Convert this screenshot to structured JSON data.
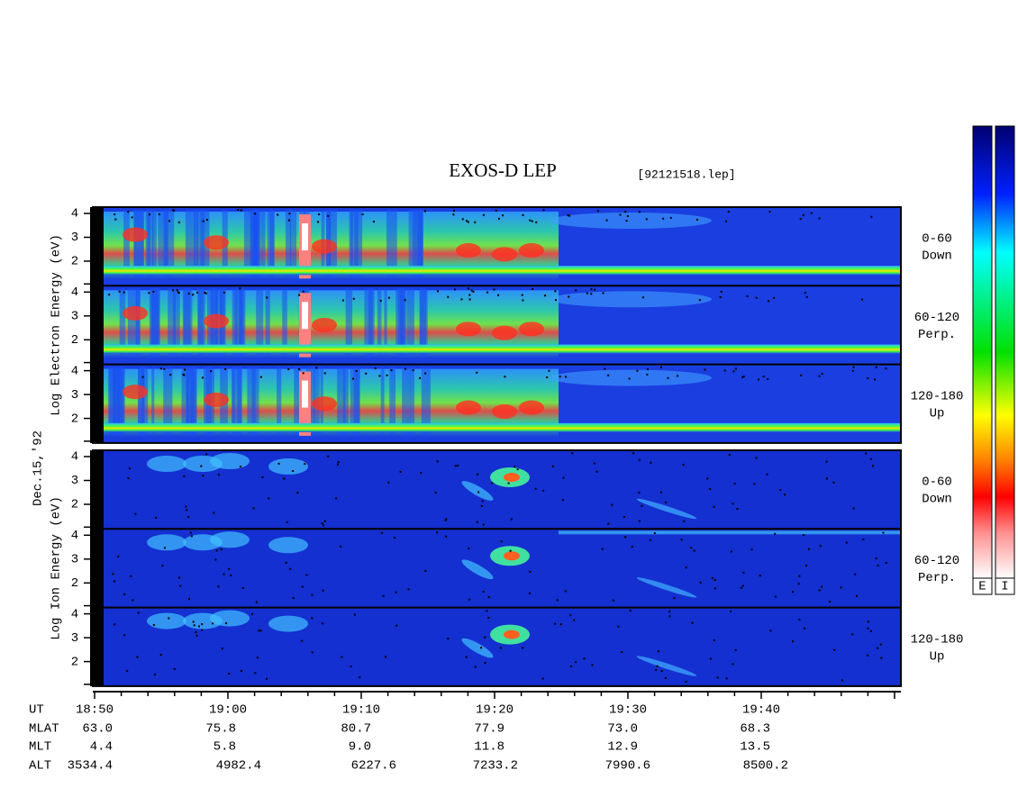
{
  "header": {
    "title": "EXOS-D LEP",
    "file": "[92121518.lep]"
  },
  "date": "Dec.15,'92",
  "blocks": [
    {
      "axis_label": "Log  Electron  Energy (eV)",
      "panels": [
        {
          "pitch": "0-60",
          "direction": "Down",
          "yticks": [
            "4",
            "3",
            "2"
          ]
        },
        {
          "pitch": "60-120",
          "direction": "Perp.",
          "yticks": [
            "4",
            "3",
            "2"
          ]
        },
        {
          "pitch": "120-180",
          "direction": "Up",
          "yticks": [
            "4",
            "3",
            "2"
          ]
        }
      ]
    },
    {
      "axis_label": "Log  Ion  Energy (eV)",
      "panels": [
        {
          "pitch": "0-60",
          "direction": "Down",
          "yticks": [
            "4",
            "3",
            "2"
          ]
        },
        {
          "pitch": "60-120",
          "direction": "Perp.",
          "yticks": [
            "4",
            "3",
            "2"
          ]
        },
        {
          "pitch": "120-180",
          "direction": "Up",
          "yticks": [
            "4",
            "3",
            "2"
          ]
        }
      ]
    }
  ],
  "colorbar_labels": [
    "E",
    "I"
  ],
  "orbit_table": {
    "rows": [
      {
        "label": "UT",
        "values": [
          "18:50",
          "19:00",
          "19:10",
          "19:20",
          "19:30",
          "19:40"
        ]
      },
      {
        "label": "MLAT",
        "values": [
          "63.0",
          "75.8",
          "80.7",
          "77.9",
          "73.0",
          "68.3"
        ]
      },
      {
        "label": "MLT",
        "values": [
          "4.4",
          "5.8",
          "9.0",
          "11.8",
          "12.9",
          "13.5"
        ]
      },
      {
        "label": "ALT",
        "values": [
          "3534.4",
          "4982.4",
          "6227.6",
          "7233.2",
          "7990.6",
          "8500.2"
        ]
      }
    ]
  }
}
